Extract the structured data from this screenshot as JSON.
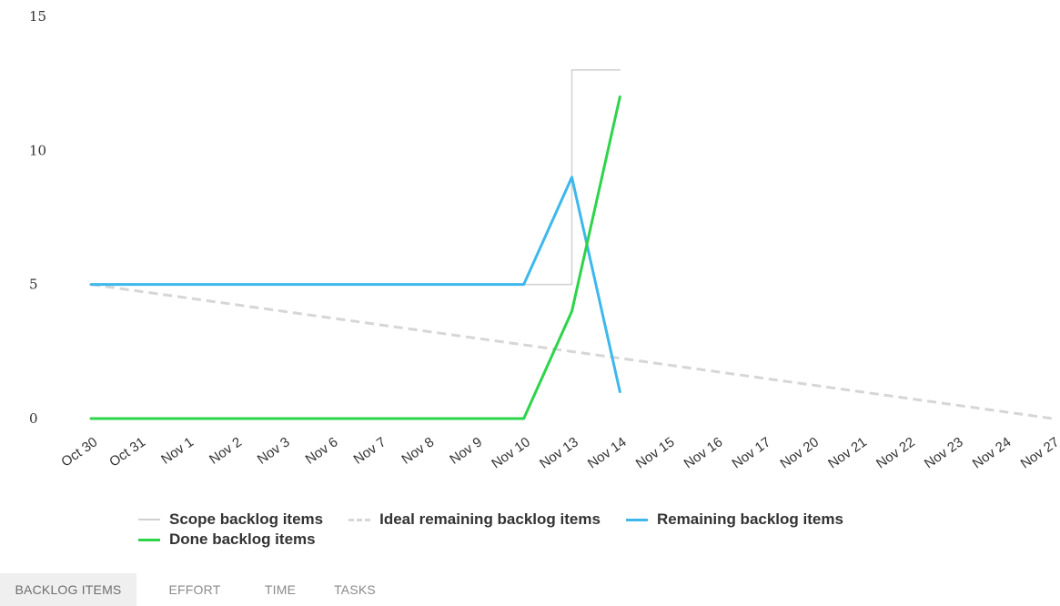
{
  "chart_data": {
    "type": "line",
    "title": "",
    "xlabel": "",
    "ylabel": "",
    "categories": [
      "Oct 30",
      "Oct 31",
      "Nov 1",
      "Nov 2",
      "Nov 3",
      "Nov 6",
      "Nov 7",
      "Nov 8",
      "Nov 9",
      "Nov 10",
      "Nov 13",
      "Nov 14",
      "Nov 15",
      "Nov 16",
      "Nov 17",
      "Nov 20",
      "Nov 21",
      "Nov 22",
      "Nov 23",
      "Nov 24",
      "Nov 27"
    ],
    "ylim": [
      0,
      15
    ],
    "yticks": [
      0,
      5,
      10,
      15
    ],
    "grid": false,
    "legend_position": "bottom",
    "series": [
      {
        "name": "Scope backlog items",
        "color": "#d0d0d0",
        "style": "step",
        "values": [
          5,
          5,
          5,
          5,
          5,
          5,
          5,
          5,
          5,
          5,
          13,
          13,
          null,
          null,
          null,
          null,
          null,
          null,
          null,
          null,
          null
        ]
      },
      {
        "name": "Ideal remaining backlog items",
        "color": "#d6d6d6",
        "style": "dashed",
        "values": [
          5,
          4.75,
          4.5,
          4.25,
          4,
          3.75,
          3.5,
          3.25,
          3,
          2.75,
          2.5,
          2.25,
          2,
          1.75,
          1.5,
          1.25,
          1,
          0.75,
          0.5,
          0.25,
          0
        ]
      },
      {
        "name": "Remaining backlog items",
        "color": "#3db8ec",
        "style": "solid",
        "values": [
          5,
          5,
          5,
          5,
          5,
          5,
          5,
          5,
          5,
          5,
          9,
          1,
          null,
          null,
          null,
          null,
          null,
          null,
          null,
          null,
          null
        ]
      },
      {
        "name": "Done backlog items",
        "color": "#2dd44a",
        "style": "solid",
        "values": [
          0,
          0,
          0,
          0,
          0,
          0,
          0,
          0,
          0,
          0,
          4,
          12,
          null,
          null,
          null,
          null,
          null,
          null,
          null,
          null,
          null
        ]
      }
    ]
  },
  "tabs": [
    {
      "label": "BACKLOG ITEMS",
      "active": true
    },
    {
      "label": "EFFORT",
      "active": false
    },
    {
      "label": "TIME",
      "active": false
    },
    {
      "label": "TASKS",
      "active": false
    }
  ]
}
